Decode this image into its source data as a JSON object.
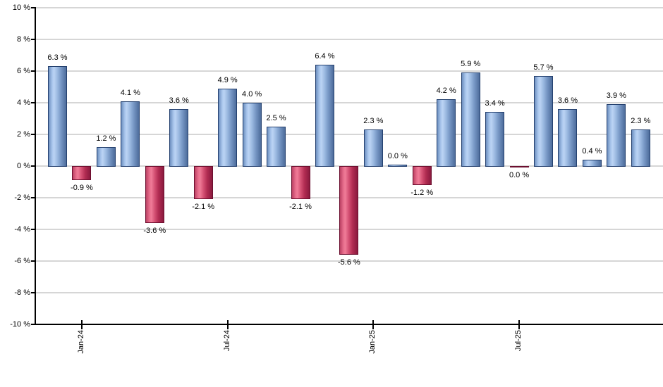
{
  "chart_data": {
    "type": "bar",
    "title": "",
    "xlabel": "",
    "ylabel": "",
    "ylim": [
      -10,
      10
    ],
    "y_tick_step": 2,
    "grid": true,
    "legend": false,
    "y_ticks": [
      "10 %",
      "8 %",
      "6 %",
      "4 %",
      "2 %",
      "0 %",
      "-2 %",
      "-4 %",
      "-6 %",
      "-8 %",
      "-10 %"
    ],
    "x_ticks": [
      {
        "label": "Jan-24",
        "bar_index": 1
      },
      {
        "label": "Jul-24",
        "bar_index": 7
      },
      {
        "label": "Jan-25",
        "bar_index": 13
      },
      {
        "label": "Jul-25",
        "bar_index": 19
      }
    ],
    "bars": [
      {
        "value": 6.3,
        "label": "6.3 %",
        "color": "positive"
      },
      {
        "value": -0.9,
        "label": "-0.9 %",
        "color": "negative"
      },
      {
        "value": 1.2,
        "label": "1.2 %",
        "color": "positive"
      },
      {
        "value": 4.1,
        "label": "4.1 %",
        "color": "positive"
      },
      {
        "value": -3.6,
        "label": "-3.6 %",
        "color": "negative"
      },
      {
        "value": 3.6,
        "label": "3.6 %",
        "color": "positive"
      },
      {
        "value": -2.1,
        "label": "-2.1 %",
        "color": "negative"
      },
      {
        "value": 4.9,
        "label": "4.9 %",
        "color": "positive"
      },
      {
        "value": 4.0,
        "label": "4.0 %",
        "color": "positive"
      },
      {
        "value": 2.5,
        "label": "2.5 %",
        "color": "positive"
      },
      {
        "value": -2.1,
        "label": "-2.1 %",
        "color": "negative"
      },
      {
        "value": 6.4,
        "label": "6.4 %",
        "color": "positive"
      },
      {
        "value": -5.6,
        "label": "-5.6 %",
        "color": "negative"
      },
      {
        "value": 2.3,
        "label": "2.3 %",
        "color": "positive"
      },
      {
        "value": 0.0,
        "label": "0.0 %",
        "color": "positive"
      },
      {
        "value": -1.2,
        "label": "-1.2 %",
        "color": "negative"
      },
      {
        "value": 4.2,
        "label": "4.2 %",
        "color": "positive"
      },
      {
        "value": 5.9,
        "label": "5.9 %",
        "color": "positive"
      },
      {
        "value": 3.4,
        "label": "3.4 %",
        "color": "positive"
      },
      {
        "value": 0.0,
        "label": "0.0 %",
        "color": "negative"
      },
      {
        "value": 5.7,
        "label": "5.7 %",
        "color": "positive"
      },
      {
        "value": 3.6,
        "label": "3.6 %",
        "color": "positive"
      },
      {
        "value": 0.4,
        "label": "0.4 %",
        "color": "positive"
      },
      {
        "value": 3.9,
        "label": "3.9 %",
        "color": "positive"
      },
      {
        "value": 2.3,
        "label": "2.3 %",
        "color": "positive"
      }
    ],
    "colors": {
      "positive_border": "#24406e",
      "positive_gradient": [
        "#6d8fbf",
        "#a9c6ec",
        "#bcd4f4",
        "#9ab8e0",
        "#7494c2",
        "#4d6c9b"
      ],
      "negative_border": "#6b0e2e",
      "negative_gradient": [
        "#bb4163",
        "#e76d8c",
        "#f07c98",
        "#d45073",
        "#b02b51",
        "#8a1a3e"
      ],
      "gridline": "#d6d6d6",
      "axis": "#000000",
      "value_label": "#000000"
    }
  }
}
